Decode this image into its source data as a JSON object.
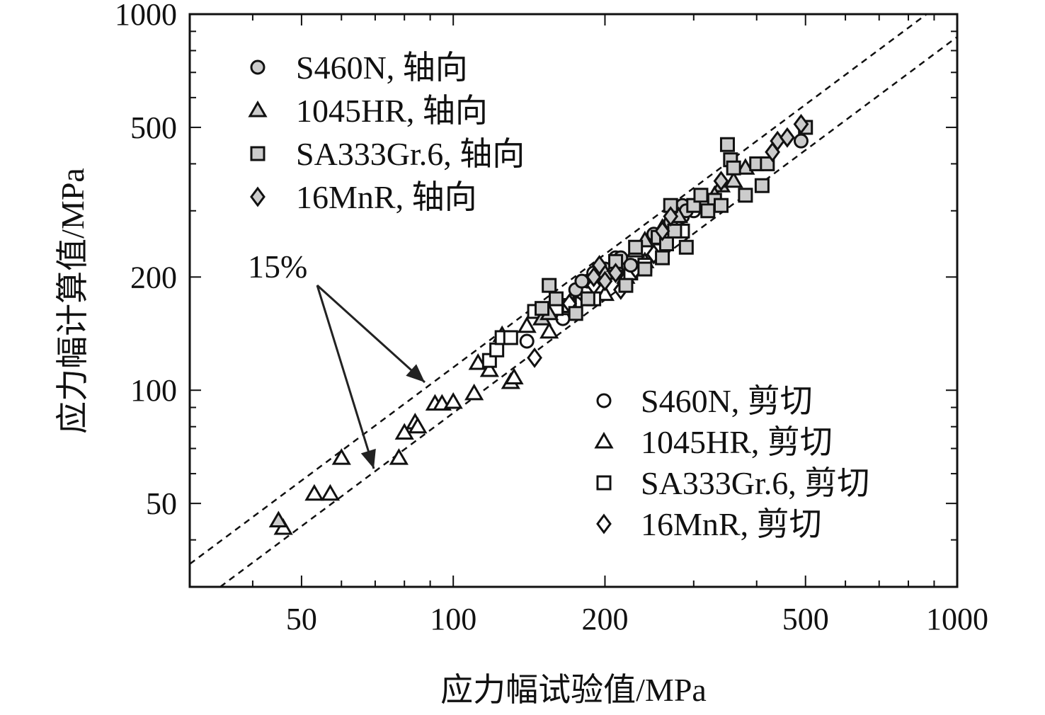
{
  "chart_data": {
    "type": "scatter",
    "title": "",
    "xlabel": "应力幅试验值/MPa",
    "ylabel": "应力幅计算值/MPa",
    "xscale": "log",
    "yscale": "log",
    "xlim": [
      30,
      1000
    ],
    "ylim": [
      30,
      1000
    ],
    "x_ticks": [
      50,
      100,
      200,
      500,
      1000
    ],
    "x_tick_labels": [
      "50",
      "100",
      "200",
      "500",
      "1000"
    ],
    "y_ticks": [
      50,
      100,
      200,
      500,
      1000
    ],
    "y_tick_labels": [
      "50",
      "100",
      "200",
      "500",
      "1000"
    ],
    "grid": false,
    "legend_axial_placement": "top-left",
    "legend_shear_placement": "bottom-right",
    "bands": [
      {
        "label": "15%",
        "factor_upper": 1.15,
        "factor_lower": 0.87
      }
    ],
    "annotation": {
      "text": "15%"
    },
    "colors": {
      "axial_fill": "#cccccc",
      "shear_fill": "#ffffff",
      "stroke": "#111111"
    },
    "series": [
      {
        "name": "S460N, 轴向",
        "marker": "circle",
        "fill": "axial",
        "points": [
          [
            215,
            225
          ],
          [
            225,
            215
          ],
          [
            250,
            260
          ],
          [
            270,
            280
          ],
          [
            285,
            310
          ],
          [
            290,
            300
          ],
          [
            490,
            460
          ],
          [
            210,
            220
          ],
          [
            175,
            185
          ],
          [
            180,
            195
          ],
          [
            200,
            210
          ]
        ]
      },
      {
        "name": "1045HR, 轴向",
        "marker": "triangle",
        "fill": "axial",
        "points": [
          [
            45,
            45
          ],
          [
            150,
            155
          ],
          [
            155,
            160
          ],
          [
            230,
            235
          ],
          [
            240,
            250
          ],
          [
            260,
            270
          ],
          [
            280,
            290
          ],
          [
            340,
            350
          ],
          [
            360,
            360
          ],
          [
            380,
            390
          ],
          [
            330,
            330
          ],
          [
            200,
            205
          ],
          [
            210,
            215
          ]
        ]
      },
      {
        "name": "SA333Gr.6, 轴向",
        "marker": "square",
        "fill": "axial",
        "points": [
          [
            155,
            190
          ],
          [
            150,
            165
          ],
          [
            160,
            175
          ],
          [
            175,
            160
          ],
          [
            185,
            175
          ],
          [
            210,
            220
          ],
          [
            230,
            240
          ],
          [
            255,
            255
          ],
          [
            270,
            310
          ],
          [
            290,
            240
          ],
          [
            300,
            310
          ],
          [
            310,
            330
          ],
          [
            330,
            320
          ],
          [
            355,
            410
          ],
          [
            360,
            390
          ],
          [
            380,
            330
          ],
          [
            400,
            400
          ],
          [
            410,
            350
          ],
          [
            420,
            400
          ],
          [
            500,
            500
          ],
          [
            350,
            450
          ],
          [
            260,
            225
          ],
          [
            220,
            190
          ],
          [
            240,
            210
          ],
          [
            265,
            245
          ],
          [
            275,
            265
          ],
          [
            320,
            300
          ],
          [
            340,
            310
          ]
        ]
      },
      {
        "name": "16MnR, 轴向",
        "marker": "diamond",
        "fill": "axial",
        "points": [
          [
            190,
            200
          ],
          [
            200,
            195
          ],
          [
            210,
            205
          ],
          [
            260,
            265
          ],
          [
            430,
            430
          ],
          [
            440,
            460
          ],
          [
            460,
            470
          ],
          [
            490,
            510
          ],
          [
            270,
            290
          ],
          [
            340,
            360
          ],
          [
            195,
            215
          ]
        ]
      },
      {
        "name": "S460N, 剪切",
        "marker": "circle",
        "fill": "shear",
        "points": [
          [
            140,
            135
          ],
          [
            155,
            165
          ],
          [
            165,
            155
          ],
          [
            175,
            170
          ],
          [
            185,
            195
          ],
          [
            190,
            205
          ],
          [
            210,
            225
          ],
          [
            220,
            200
          ],
          [
            285,
            290
          ],
          [
            300,
            300
          ]
        ]
      },
      {
        "name": "1045HR, 剪切",
        "marker": "triangle",
        "fill": "shear",
        "points": [
          [
            46,
            43
          ],
          [
            53,
            53
          ],
          [
            57,
            53
          ],
          [
            60,
            66
          ],
          [
            78,
            66
          ],
          [
            80,
            77
          ],
          [
            84,
            82
          ],
          [
            85,
            80
          ],
          [
            92,
            92
          ],
          [
            95,
            92
          ],
          [
            100,
            93
          ],
          [
            110,
            98
          ],
          [
            112,
            118
          ],
          [
            118,
            113
          ],
          [
            125,
            140
          ],
          [
            130,
            105
          ],
          [
            132,
            108
          ],
          [
            140,
            148
          ],
          [
            155,
            143
          ],
          [
            170,
            165
          ],
          [
            200,
            180
          ],
          [
            220,
            200
          ],
          [
            240,
            220
          ]
        ]
      },
      {
        "name": "SA333Gr.6, 剪切",
        "marker": "square",
        "fill": "shear",
        "points": [
          [
            118,
            120
          ],
          [
            122,
            128
          ],
          [
            125,
            138
          ],
          [
            130,
            138
          ],
          [
            145,
            162
          ],
          [
            160,
            165
          ],
          [
            170,
            168
          ],
          [
            190,
            175
          ],
          [
            210,
            210
          ],
          [
            225,
            205
          ],
          [
            240,
            215
          ],
          [
            255,
            235
          ],
          [
            265,
            245
          ],
          [
            285,
            265
          ]
        ]
      },
      {
        "name": "16MnR, 剪切",
        "marker": "diamond",
        "fill": "shear",
        "points": [
          [
            145,
            122
          ],
          [
            170,
            170
          ],
          [
            190,
            190
          ],
          [
            215,
            185
          ],
          [
            230,
            210
          ],
          [
            250,
            230
          ]
        ]
      }
    ]
  }
}
